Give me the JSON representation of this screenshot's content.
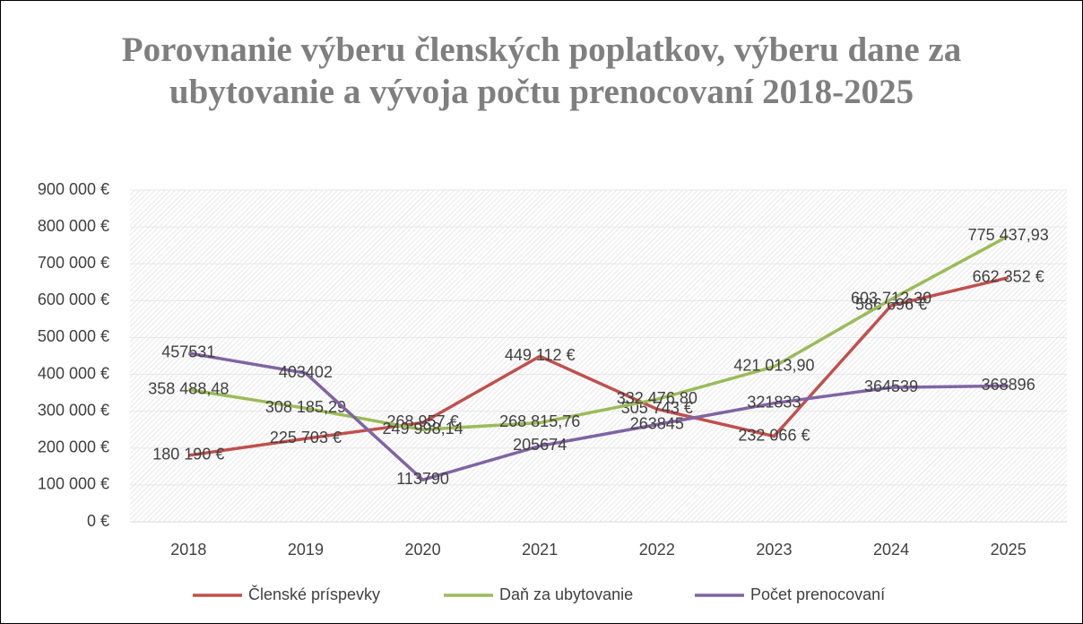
{
  "chart_data": {
    "type": "line",
    "title": "Porovnanie výberu členských poplatkov, výberu dane za ubytovanie a vývoja počtu prenocovaní 2018-2025",
    "categories": [
      "2018",
      "2019",
      "2020",
      "2021",
      "2022",
      "2023",
      "2024",
      "2025"
    ],
    "series": [
      {
        "name": "Členské príspevky",
        "color": "#c0504d",
        "values": [
          180190,
          225703,
          268957,
          449112,
          305743,
          232066,
          586696,
          662352
        ],
        "value_labels": [
          "180 190 €",
          "225 703 €",
          "268 957 €",
          "449 112 €",
          "305 743 €",
          "232 066 €",
          "586 696 €",
          "662 352 €"
        ]
      },
      {
        "name": "Daň za ubytovanie",
        "color": "#9bbb59",
        "values": [
          358488.48,
          308185.29,
          249998.14,
          268815.76,
          332476.8,
          421013.9,
          603712.3,
          775437.93
        ],
        "value_labels": [
          "358 488,48",
          "308 185,29",
          "249 998,14",
          "268 815,76",
          "332 476,80",
          "421 013,90",
          "603 712,30",
          "775 437,93"
        ]
      },
      {
        "name": "Počet prenocovaní",
        "color": "#8064a2",
        "values": [
          457531,
          403402,
          113790,
          205674,
          263845,
          321833,
          364539,
          368896
        ]
      }
    ],
    "ylim": [
      0,
      900000
    ],
    "yticks": [
      {
        "value": 0,
        "label": "0 €"
      },
      {
        "value": 100000,
        "label": "100 000 €"
      },
      {
        "value": 200000,
        "label": "200 000 €"
      },
      {
        "value": 300000,
        "label": "300 000 €"
      },
      {
        "value": 400000,
        "label": "400 000 €"
      },
      {
        "value": 500000,
        "label": "500 000 €"
      },
      {
        "value": 600000,
        "label": "600 000 €"
      },
      {
        "value": 700000,
        "label": "700 000 €"
      },
      {
        "value": 800000,
        "label": "800 000 €"
      },
      {
        "value": 900000,
        "label": "900 000 €"
      }
    ],
    "grid": true,
    "legend": "bottom"
  }
}
